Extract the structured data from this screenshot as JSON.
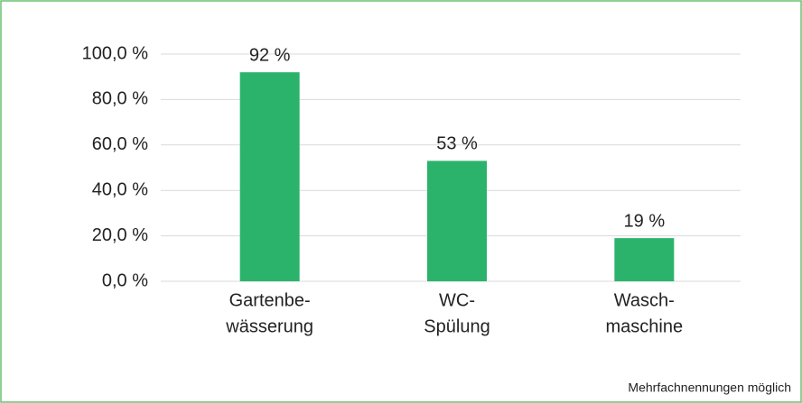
{
  "chart_data": {
    "type": "bar",
    "categories": [
      [
        "Gartenbe-",
        "wässerung"
      ],
      [
        "WC-",
        "Spülung"
      ],
      [
        "Wasch-",
        "maschine"
      ]
    ],
    "values": [
      92,
      53,
      19
    ],
    "value_labels": [
      "92 %",
      "53 %",
      "19 %"
    ],
    "color": "#2bb36b",
    "ylim": [
      0,
      100
    ],
    "yticks": [
      {
        "value": 0,
        "label": "0,0 %"
      },
      {
        "value": 20,
        "label": "20,0 %"
      },
      {
        "value": 40,
        "label": "40,0 %"
      },
      {
        "value": 60,
        "label": "60,0 %"
      },
      {
        "value": 80,
        "label": "80,0 %"
      },
      {
        "value": 100,
        "label": "100,0 %"
      }
    ],
    "grid": true,
    "annotation": "Mehrfachnennungen möglich"
  }
}
